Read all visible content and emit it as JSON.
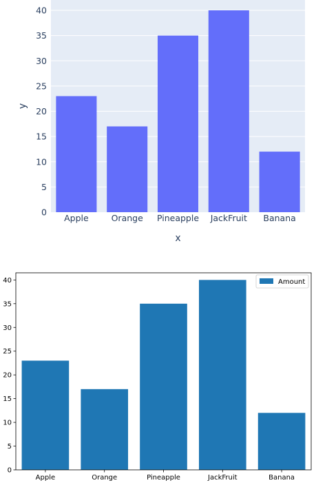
{
  "chart_data": [
    {
      "type": "bar",
      "style": "plotly",
      "categories": [
        "Apple",
        "Orange",
        "Pineapple",
        "JackFruit",
        "Banana"
      ],
      "values": [
        23,
        17,
        35,
        40,
        12
      ],
      "xlabel": "x",
      "ylabel": "y",
      "ylim": [
        0,
        40
      ],
      "yticks": [
        0,
        5,
        10,
        15,
        20,
        25,
        30,
        35,
        40
      ],
      "grid": true,
      "colors": {
        "bar": "#636efa",
        "plot_bg": "#e5ecf6",
        "grid": "#ffffff",
        "text": "#2a3f5f"
      }
    },
    {
      "type": "bar",
      "style": "matplotlib",
      "categories": [
        "Apple",
        "Orange",
        "Pineapple",
        "JackFruit",
        "Banana"
      ],
      "series": [
        {
          "name": "Amount",
          "values": [
            23,
            17,
            35,
            40,
            12
          ]
        }
      ],
      "ylim": [
        0,
        41.5
      ],
      "yticks": [
        0,
        5,
        10,
        15,
        20,
        25,
        30,
        35,
        40
      ],
      "grid": false,
      "legend": "top-right",
      "colors": {
        "bar": "#1f77b4",
        "axis": "#000000",
        "text": "#000000"
      }
    }
  ]
}
